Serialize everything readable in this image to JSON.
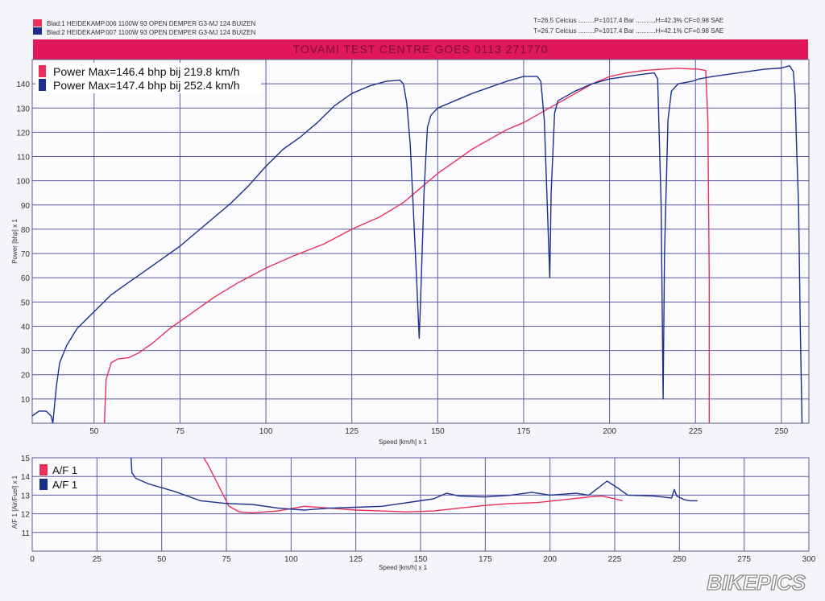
{
  "header": {
    "run1": "Blad:1 HEIDEKAMP.006 1100W 93 OPEN DEMPER G3-MJ 124 BUIZEN",
    "run2": "Blad:2 HEIDEKAMP.007 1100W 93 OPEN DEMPER G3-MJ 124 BUIZEN",
    "cond1": "T=26.5 Celcius .........P=1017.4 Bar ...........H=42.3% CF=0.98 SAE",
    "cond2": "T=26.7 Celcius .........P=1017.4 Bar ...........H=42.1% CF=0.98 SAE",
    "banner": "TOVAMI TEST CENTRE GOES 0113 271770",
    "run1_color": "#e8305a",
    "run2_color": "#1a2f8c"
  },
  "watermark": "BIKEPICS",
  "chart_data": [
    {
      "type": "line",
      "xlabel": "Speed [km/h] x 1",
      "ylabel": "Power [bhp] x 1",
      "xlim": [
        32,
        258
      ],
      "ylim": [
        0,
        150
      ],
      "xticks": [
        50,
        75,
        100,
        125,
        150,
        175,
        200,
        225,
        250
      ],
      "yticks": [
        10,
        20,
        30,
        40,
        50,
        60,
        70,
        80,
        90,
        100,
        110,
        120,
        130,
        140
      ],
      "grid": true,
      "legend": [
        "Power  Max=146.4 bhp bij 219.8 km/h",
        "Power  Max=147.4 bhp bij 252.4 km/h"
      ],
      "series": [
        {
          "color": "#e8305a",
          "points": [
            [
              53,
              0
            ],
            [
              53.5,
              18
            ],
            [
              55,
              25
            ],
            [
              57,
              26.5
            ],
            [
              60,
              27
            ],
            [
              63,
              29
            ],
            [
              67,
              33
            ],
            [
              72,
              39
            ],
            [
              78,
              45
            ],
            [
              85,
              52
            ],
            [
              92,
              58
            ],
            [
              100,
              64
            ],
            [
              108,
              69
            ],
            [
              117,
              74
            ],
            [
              125,
              80
            ],
            [
              133,
              85
            ],
            [
              140,
              91
            ],
            [
              145,
              97
            ],
            [
              150,
              103
            ],
            [
              155,
              108
            ],
            [
              160,
              113
            ],
            [
              165,
              117
            ],
            [
              170,
              121
            ],
            [
              175,
              124
            ],
            [
              180,
              128
            ],
            [
              185,
              132
            ],
            [
              190,
              136
            ],
            [
              195,
              140
            ],
            [
              200,
              143
            ],
            [
              205,
              144.5
            ],
            [
              210,
              145.5
            ],
            [
              215,
              146
            ],
            [
              219.8,
              146.4
            ],
            [
              223,
              146.2
            ],
            [
              226,
              146
            ],
            [
              228,
              145.5
            ],
            [
              228.6,
              125
            ],
            [
              229,
              60
            ],
            [
              229,
              0
            ]
          ]
        },
        {
          "color": "#1a2f8c",
          "points": [
            [
              32,
              3
            ],
            [
              34,
              5
            ],
            [
              36,
              5
            ],
            [
              37.5,
              3
            ],
            [
              38,
              0
            ],
            [
              39,
              15
            ],
            [
              40,
              25
            ],
            [
              42,
              32
            ],
            [
              45,
              39
            ],
            [
              50,
              46
            ],
            [
              55,
              53
            ],
            [
              60,
              58
            ],
            [
              65,
              63
            ],
            [
              70,
              68
            ],
            [
              75,
              73
            ],
            [
              80,
              79
            ],
            [
              85,
              85
            ],
            [
              90,
              91
            ],
            [
              95,
              98
            ],
            [
              100,
              106
            ],
            [
              105,
              113
            ],
            [
              110,
              118
            ],
            [
              115,
              124
            ],
            [
              120,
              131
            ],
            [
              125,
              136
            ],
            [
              130,
              139
            ],
            [
              135,
              141
            ],
            [
              139,
              141.5
            ],
            [
              140,
              140
            ],
            [
              141,
              132
            ],
            [
              142,
              115
            ],
            [
              143,
              85
            ],
            [
              144,
              55
            ],
            [
              144.6,
              35
            ],
            [
              145,
              50
            ],
            [
              146,
              95
            ],
            [
              147,
              122
            ],
            [
              148,
              127
            ],
            [
              150,
              130
            ],
            [
              155,
              133
            ],
            [
              160,
              136
            ],
            [
              165,
              138.5
            ],
            [
              170,
              141
            ],
            [
              175,
              143
            ],
            [
              179,
              143
            ],
            [
              180,
              141
            ],
            [
              181,
              125
            ],
            [
              182,
              85
            ],
            [
              182.6,
              60
            ],
            [
              183,
              95
            ],
            [
              184,
              128
            ],
            [
              185,
              133
            ],
            [
              190,
              137
            ],
            [
              195,
              140
            ],
            [
              200,
              142
            ],
            [
              205,
              143
            ],
            [
              210,
              144
            ],
            [
              213,
              144.5
            ],
            [
              214,
              142
            ],
            [
              215,
              90
            ],
            [
              215.6,
              10
            ],
            [
              216,
              70
            ],
            [
              217,
              125
            ],
            [
              218,
              137
            ],
            [
              220,
              140
            ],
            [
              224,
              141
            ],
            [
              226,
              142
            ],
            [
              230,
              143
            ],
            [
              235,
              144
            ],
            [
              240,
              145
            ],
            [
              245,
              146
            ],
            [
              250,
              146.5
            ],
            [
              252.4,
              147.4
            ],
            [
              253.5,
              145
            ],
            [
              254,
              135
            ],
            [
              254.5,
              110
            ],
            [
              255,
              90
            ],
            [
              255.5,
              40
            ],
            [
              256,
              0
            ]
          ]
        }
      ]
    },
    {
      "type": "line",
      "xlabel": "Speed [km/h] x 1",
      "ylabel": "A/F 1 [Air/Fuel] x 1",
      "xlim": [
        0,
        300
      ],
      "ylim": [
        10,
        15
      ],
      "xticks": [
        0,
        25,
        50,
        75,
        100,
        125,
        150,
        175,
        200,
        225,
        250,
        275,
        300
      ],
      "yticks": [
        11,
        12,
        13,
        14,
        15
      ],
      "grid": true,
      "legend": [
        "A/F 1",
        "A/F 1"
      ],
      "series": [
        {
          "color": "#e8305a",
          "points": [
            [
              65,
              15.3
            ],
            [
              68,
              14.6
            ],
            [
              72,
              13.5
            ],
            [
              76,
              12.4
            ],
            [
              80,
              12.1
            ],
            [
              85,
              12.05
            ],
            [
              95,
              12.15
            ],
            [
              105,
              12.4
            ],
            [
              115,
              12.3
            ],
            [
              125,
              12.2
            ],
            [
              135,
              12.15
            ],
            [
              145,
              12.1
            ],
            [
              155,
              12.15
            ],
            [
              165,
              12.3
            ],
            [
              175,
              12.45
            ],
            [
              185,
              12.55
            ],
            [
              195,
              12.6
            ],
            [
              205,
              12.75
            ],
            [
              215,
              12.9
            ],
            [
              220,
              12.95
            ],
            [
              225,
              12.8
            ],
            [
              228,
              12.7
            ]
          ]
        },
        {
          "color": "#1a2f8c",
          "points": [
            [
              38,
              15.5
            ],
            [
              38.5,
              14.2
            ],
            [
              40,
              13.9
            ],
            [
              45,
              13.6
            ],
            [
              55,
              13.2
            ],
            [
              65,
              12.7
            ],
            [
              75,
              12.55
            ],
            [
              85,
              12.5
            ],
            [
              95,
              12.3
            ],
            [
              105,
              12.2
            ],
            [
              115,
              12.3
            ],
            [
              125,
              12.35
            ],
            [
              135,
              12.4
            ],
            [
              145,
              12.6
            ],
            [
              155,
              12.8
            ],
            [
              160,
              13.1
            ],
            [
              165,
              12.95
            ],
            [
              175,
              12.9
            ],
            [
              185,
              13.0
            ],
            [
              193,
              13.15
            ],
            [
              200,
              13.0
            ],
            [
              210,
              13.1
            ],
            [
              215,
              13.0
            ],
            [
              222,
              13.75
            ],
            [
              226,
              13.4
            ],
            [
              230,
              13.0
            ],
            [
              240,
              12.95
            ],
            [
              247,
              12.85
            ],
            [
              248,
              13.3
            ],
            [
              249,
              12.95
            ],
            [
              252,
              12.75
            ],
            [
              254,
              12.7
            ],
            [
              257,
              12.7
            ]
          ]
        }
      ]
    }
  ]
}
